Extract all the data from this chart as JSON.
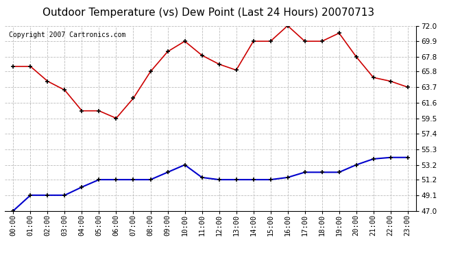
{
  "title": "Outdoor Temperature (vs) Dew Point (Last 24 Hours) 20070713",
  "copyright": "Copyright 2007 Cartronics.com",
  "hours": [
    "00:00",
    "01:00",
    "02:00",
    "03:00",
    "04:00",
    "05:00",
    "06:00",
    "07:00",
    "08:00",
    "09:00",
    "10:00",
    "11:00",
    "12:00",
    "13:00",
    "14:00",
    "15:00",
    "16:00",
    "17:00",
    "18:00",
    "19:00",
    "20:00",
    "21:00",
    "22:00",
    "23:00"
  ],
  "temp": [
    66.5,
    66.5,
    64.5,
    63.3,
    60.5,
    60.5,
    59.5,
    62.2,
    65.8,
    68.5,
    69.9,
    68.0,
    66.8,
    66.0,
    69.9,
    69.9,
    72.0,
    69.9,
    69.9,
    71.0,
    67.8,
    65.0,
    64.5,
    63.7
  ],
  "dew": [
    47.0,
    49.1,
    49.1,
    49.1,
    50.2,
    51.2,
    51.2,
    51.2,
    51.2,
    52.2,
    53.2,
    51.5,
    51.2,
    51.2,
    51.2,
    51.2,
    51.5,
    52.2,
    52.2,
    52.2,
    53.2,
    54.0,
    54.2,
    54.2
  ],
  "temp_color": "#cc0000",
  "dew_color": "#0000cc",
  "bg_color": "#ffffff",
  "plot_bg_color": "#ffffff",
  "grid_color": "#bbbbbb",
  "ylim_min": 47.0,
  "ylim_max": 72.0,
  "yticks": [
    47.0,
    49.1,
    51.2,
    53.2,
    55.3,
    57.4,
    59.5,
    61.6,
    63.7,
    65.8,
    67.8,
    69.9,
    72.0
  ],
  "title_fontsize": 11,
  "copyright_fontsize": 7,
  "tick_fontsize": 7.5,
  "marker_size": 4,
  "marker_edge_width": 1.2
}
